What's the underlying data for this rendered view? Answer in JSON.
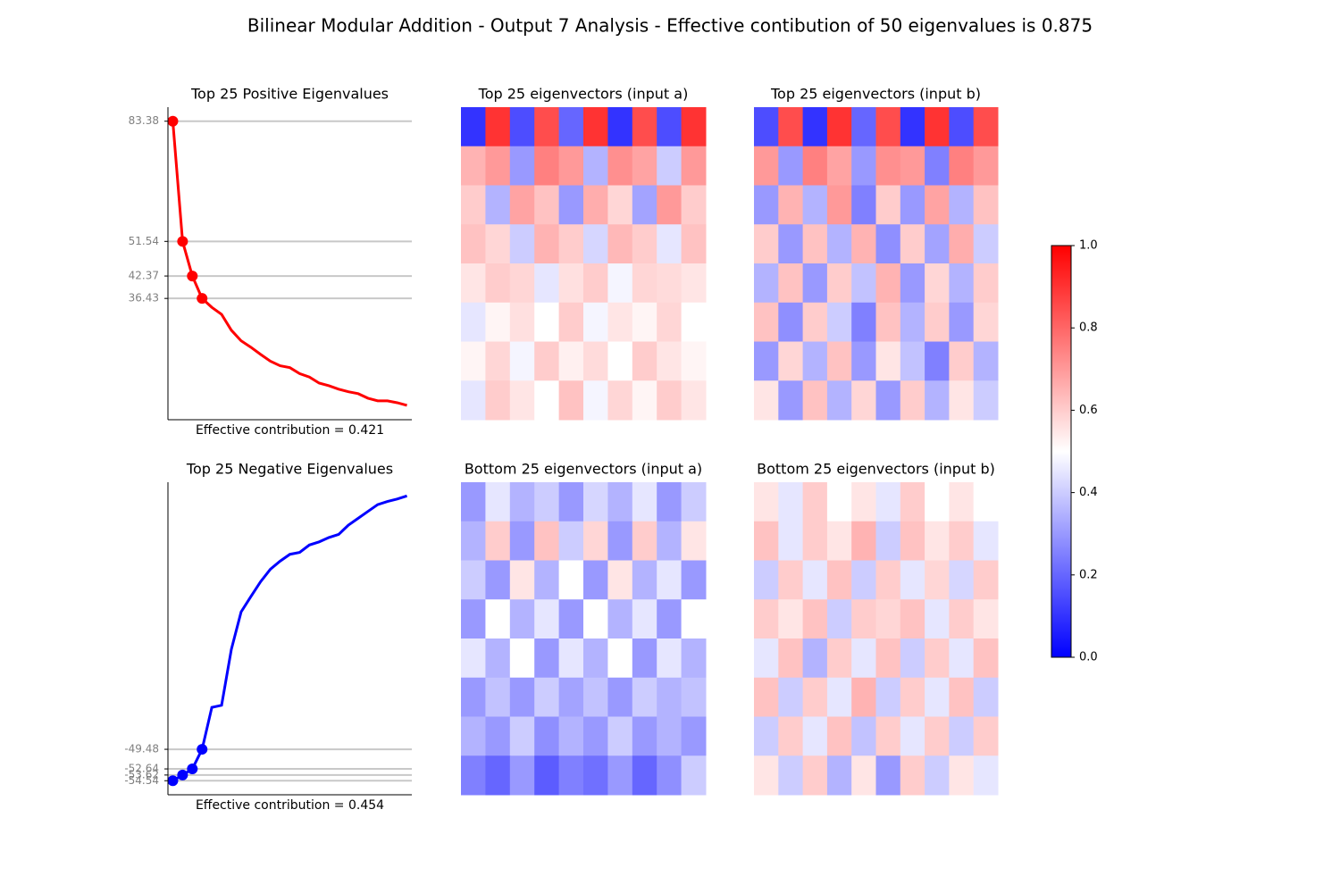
{
  "title": "Bilinear Modular Addition - Output 7 Analysis - Effective contibution of 50 eigenvalues is 0.875",
  "chart_data": [
    {
      "type": "line",
      "title": "Top 25 Positive Eigenvalues",
      "x_label": "Effective contribution = 0.421",
      "color": "#ff0000",
      "values": [
        83.38,
        51.54,
        42.37,
        36.43,
        34.07,
        32.2,
        28.0,
        25.2,
        23.5,
        21.6,
        19.8,
        18.6,
        18.1,
        16.5,
        15.6,
        14.0,
        13.3,
        12.4,
        11.7,
        11.2,
        10.0,
        9.3,
        9.3,
        8.8,
        8.1
      ],
      "ylim": [
        4.3,
        87.1
      ],
      "yticks": [
        83.38,
        51.54,
        42.37,
        36.43
      ],
      "grid": true
    },
    {
      "type": "line",
      "title": "Top 25 Negative Eigenvalues",
      "x_label": "Effective contribution = 0.454",
      "color": "#0000ff",
      "values": [
        -54.54,
        -53.62,
        -52.64,
        -49.48,
        -42.73,
        -42.4,
        -33.4,
        -27.37,
        -24.9,
        -22.5,
        -20.5,
        -19.2,
        -18.1,
        -17.8,
        -16.6,
        -16.1,
        -15.4,
        -14.9,
        -13.4,
        -12.3,
        -11.2,
        -10.1,
        -9.6,
        -9.2,
        -8.7
      ],
      "ylim": [
        -56.8,
        -6.5
      ],
      "yticks": [
        -49.48,
        -52.64,
        -53.62,
        -54.54
      ],
      "grid": true
    },
    {
      "type": "heatmap",
      "title": "Top 25 eigenvectors (input a)",
      "values": [
        [
          0.1,
          0.9,
          0.15,
          0.85,
          0.2,
          0.9,
          0.1,
          0.85,
          0.15,
          0.9
        ],
        [
          0.65,
          0.7,
          0.3,
          0.75,
          0.7,
          0.35,
          0.72,
          0.68,
          0.4,
          0.7
        ],
        [
          0.6,
          0.35,
          0.68,
          0.62,
          0.3,
          0.66,
          0.58,
          0.32,
          0.7,
          0.6
        ],
        [
          0.62,
          0.58,
          0.4,
          0.65,
          0.6,
          0.42,
          0.64,
          0.6,
          0.45,
          0.62
        ],
        [
          0.55,
          0.6,
          0.58,
          0.45,
          0.56,
          0.6,
          0.48,
          0.58,
          0.57,
          0.55
        ],
        [
          0.45,
          0.52,
          0.56,
          0.5,
          0.6,
          0.48,
          0.55,
          0.52,
          0.58,
          0.5
        ],
        [
          0.52,
          0.58,
          0.48,
          0.6,
          0.53,
          0.57,
          0.5,
          0.6,
          0.55,
          0.52
        ],
        [
          0.45,
          0.6,
          0.55,
          0.5,
          0.62,
          0.48,
          0.58,
          0.52,
          0.6,
          0.55
        ]
      ]
    },
    {
      "type": "heatmap",
      "title": "Top 25 eigenvectors (input b)",
      "values": [
        [
          0.15,
          0.85,
          0.1,
          0.9,
          0.2,
          0.85,
          0.1,
          0.9,
          0.15,
          0.85
        ],
        [
          0.7,
          0.3,
          0.75,
          0.68,
          0.3,
          0.72,
          0.7,
          0.25,
          0.75,
          0.7
        ],
        [
          0.3,
          0.65,
          0.35,
          0.7,
          0.25,
          0.6,
          0.3,
          0.68,
          0.35,
          0.62
        ],
        [
          0.6,
          0.3,
          0.62,
          0.35,
          0.65,
          0.28,
          0.6,
          0.32,
          0.66,
          0.4
        ],
        [
          0.35,
          0.62,
          0.3,
          0.6,
          0.38,
          0.65,
          0.3,
          0.58,
          0.35,
          0.6
        ],
        [
          0.62,
          0.28,
          0.6,
          0.4,
          0.25,
          0.62,
          0.35,
          0.6,
          0.3,
          0.58
        ],
        [
          0.3,
          0.58,
          0.35,
          0.62,
          0.3,
          0.55,
          0.38,
          0.25,
          0.6,
          0.35
        ],
        [
          0.55,
          0.3,
          0.62,
          0.35,
          0.58,
          0.3,
          0.6,
          0.35,
          0.55,
          0.4
        ]
      ]
    },
    {
      "type": "heatmap",
      "title": "Bottom 25 eigenvectors (input a)",
      "values": [
        [
          0.3,
          0.45,
          0.35,
          0.4,
          0.3,
          0.42,
          0.35,
          0.45,
          0.3,
          0.4
        ],
        [
          0.35,
          0.6,
          0.3,
          0.62,
          0.4,
          0.58,
          0.3,
          0.6,
          0.35,
          0.55
        ],
        [
          0.4,
          0.3,
          0.55,
          0.35,
          0.5,
          0.3,
          0.55,
          0.35,
          0.45,
          0.3
        ],
        [
          0.3,
          0.5,
          0.35,
          0.45,
          0.3,
          0.5,
          0.35,
          0.45,
          0.3,
          0.5
        ],
        [
          0.45,
          0.35,
          0.5,
          0.3,
          0.45,
          0.35,
          0.5,
          0.3,
          0.45,
          0.35
        ],
        [
          0.3,
          0.38,
          0.3,
          0.4,
          0.32,
          0.38,
          0.3,
          0.4,
          0.35,
          0.38
        ],
        [
          0.35,
          0.3,
          0.4,
          0.28,
          0.35,
          0.3,
          0.4,
          0.3,
          0.35,
          0.3
        ],
        [
          0.25,
          0.2,
          0.3,
          0.18,
          0.25,
          0.22,
          0.3,
          0.2,
          0.28,
          0.4
        ]
      ]
    },
    {
      "type": "heatmap",
      "title": "Bottom 25 eigenvectors (input b)",
      "values": [
        [
          0.55,
          0.45,
          0.6,
          0.5,
          0.55,
          0.45,
          0.6,
          0.5,
          0.55,
          0.5
        ],
        [
          0.62,
          0.45,
          0.6,
          0.55,
          0.65,
          0.4,
          0.62,
          0.55,
          0.6,
          0.45
        ],
        [
          0.4,
          0.6,
          0.45,
          0.62,
          0.4,
          0.6,
          0.45,
          0.58,
          0.42,
          0.6
        ],
        [
          0.6,
          0.55,
          0.62,
          0.4,
          0.6,
          0.58,
          0.62,
          0.45,
          0.6,
          0.55
        ],
        [
          0.45,
          0.62,
          0.35,
          0.6,
          0.45,
          0.62,
          0.4,
          0.6,
          0.45,
          0.62
        ],
        [
          0.62,
          0.4,
          0.6,
          0.45,
          0.65,
          0.4,
          0.6,
          0.45,
          0.62,
          0.4
        ],
        [
          0.4,
          0.6,
          0.45,
          0.62,
          0.38,
          0.6,
          0.45,
          0.6,
          0.4,
          0.6
        ],
        [
          0.55,
          0.4,
          0.6,
          0.35,
          0.55,
          0.3,
          0.6,
          0.4,
          0.55,
          0.45
        ]
      ]
    },
    {
      "type": "colorbar",
      "colormap": [
        "#0000ff",
        "#ffffff",
        "#ff0000"
      ],
      "zlim": [
        0,
        1
      ],
      "zticks": [
        {
          "value": 0,
          "label": "0.0"
        },
        {
          "value": 0.2,
          "label": "0.2"
        },
        {
          "value": 0.4,
          "label": "0.4"
        },
        {
          "value": 0.6,
          "label": "0.6"
        },
        {
          "value": 0.8,
          "label": "0.8"
        },
        {
          "value": 1,
          "label": "1.0"
        }
      ]
    }
  ]
}
